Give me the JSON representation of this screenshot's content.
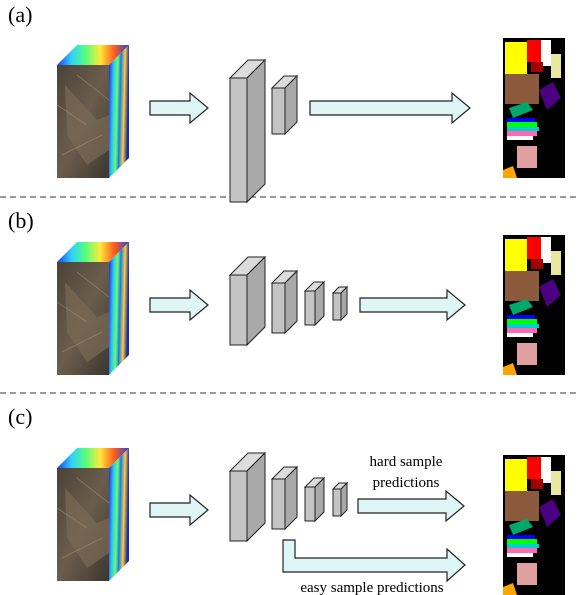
{
  "panels": [
    {
      "label": "(a)"
    },
    {
      "label": "(b)"
    },
    {
      "label": "(c)",
      "hard_label": [
        "hard sample",
        "predictions"
      ],
      "easy_label": "easy sample predictions"
    }
  ]
}
